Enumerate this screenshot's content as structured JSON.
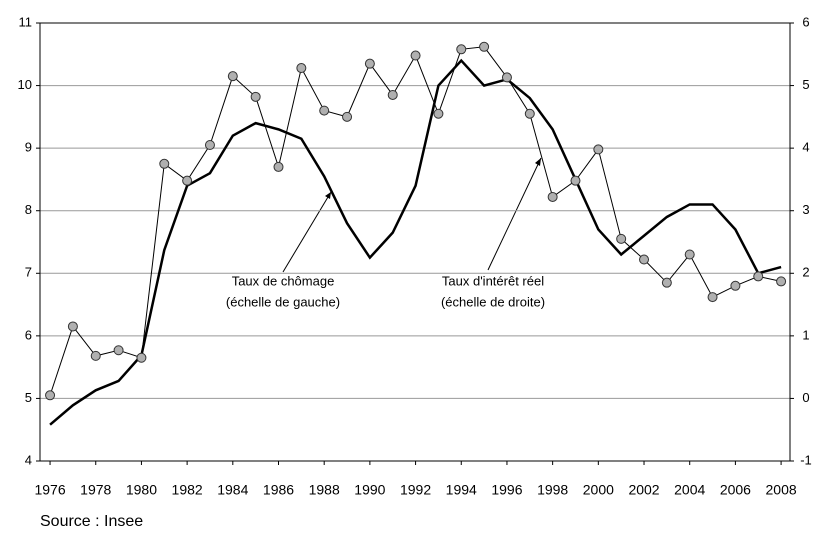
{
  "chart_data": {
    "type": "line",
    "x": [
      1976,
      1977,
      1978,
      1979,
      1980,
      1981,
      1982,
      1983,
      1984,
      1985,
      1986,
      1987,
      1988,
      1989,
      1990,
      1991,
      1992,
      1993,
      1994,
      1995,
      1996,
      1997,
      1998,
      1999,
      2000,
      2001,
      2002,
      2003,
      2004,
      2005,
      2006,
      2007,
      2008
    ],
    "series": [
      {
        "name": "Taux de chômage",
        "color": "#000000",
        "axis": "y",
        "values": [
          4.58,
          4.89,
          5.13,
          5.28,
          5.69,
          7.37,
          8.4,
          8.6,
          9.2,
          9.4,
          9.3,
          9.15,
          8.55,
          7.8,
          7.25,
          7.65,
          8.4,
          10.0,
          10.4,
          10.0,
          10.1,
          9.8,
          9.3,
          8.5,
          7.7,
          7.3,
          7.6,
          7.9,
          8.1,
          8.1,
          7.7,
          7.0,
          7.1
        ]
      },
      {
        "name": "Taux d'intérêt réel",
        "color": "#000000",
        "axis": "y2",
        "markers": true,
        "values": [
          0.05,
          1.15,
          0.68,
          0.77,
          0.65,
          3.75,
          3.48,
          4.05,
          5.15,
          4.82,
          3.7,
          5.28,
          4.6,
          4.5,
          5.35,
          4.85,
          5.48,
          4.55,
          5.58,
          5.62,
          5.13,
          4.55,
          3.22,
          3.48,
          3.98,
          2.55,
          2.22,
          1.85,
          2.3,
          1.62,
          1.8,
          1.95,
          1.87
        ]
      }
    ],
    "xlim": [
      1975.56,
      2008.39
    ],
    "xticks": [
      1976,
      1978,
      1980,
      1982,
      1984,
      1986,
      1988,
      1990,
      1992,
      1994,
      1996,
      1998,
      2000,
      2002,
      2004,
      2006,
      2008
    ],
    "ylim": [
      4,
      11
    ],
    "yticks": [
      4,
      5,
      6,
      7,
      8,
      9,
      10,
      11
    ],
    "y2lim": [
      -1,
      6
    ],
    "y2ticks": [
      -1,
      0,
      1,
      2,
      3,
      4,
      5,
      6
    ],
    "grid": true,
    "annotations": [
      {
        "lines": [
          "Taux de chômage",
          "(échelle de gauche)"
        ]
      },
      {
        "lines": [
          "Taux d'intérêt réel",
          "(échelle de droite)"
        ]
      }
    ],
    "source": "Source : Insee"
  }
}
